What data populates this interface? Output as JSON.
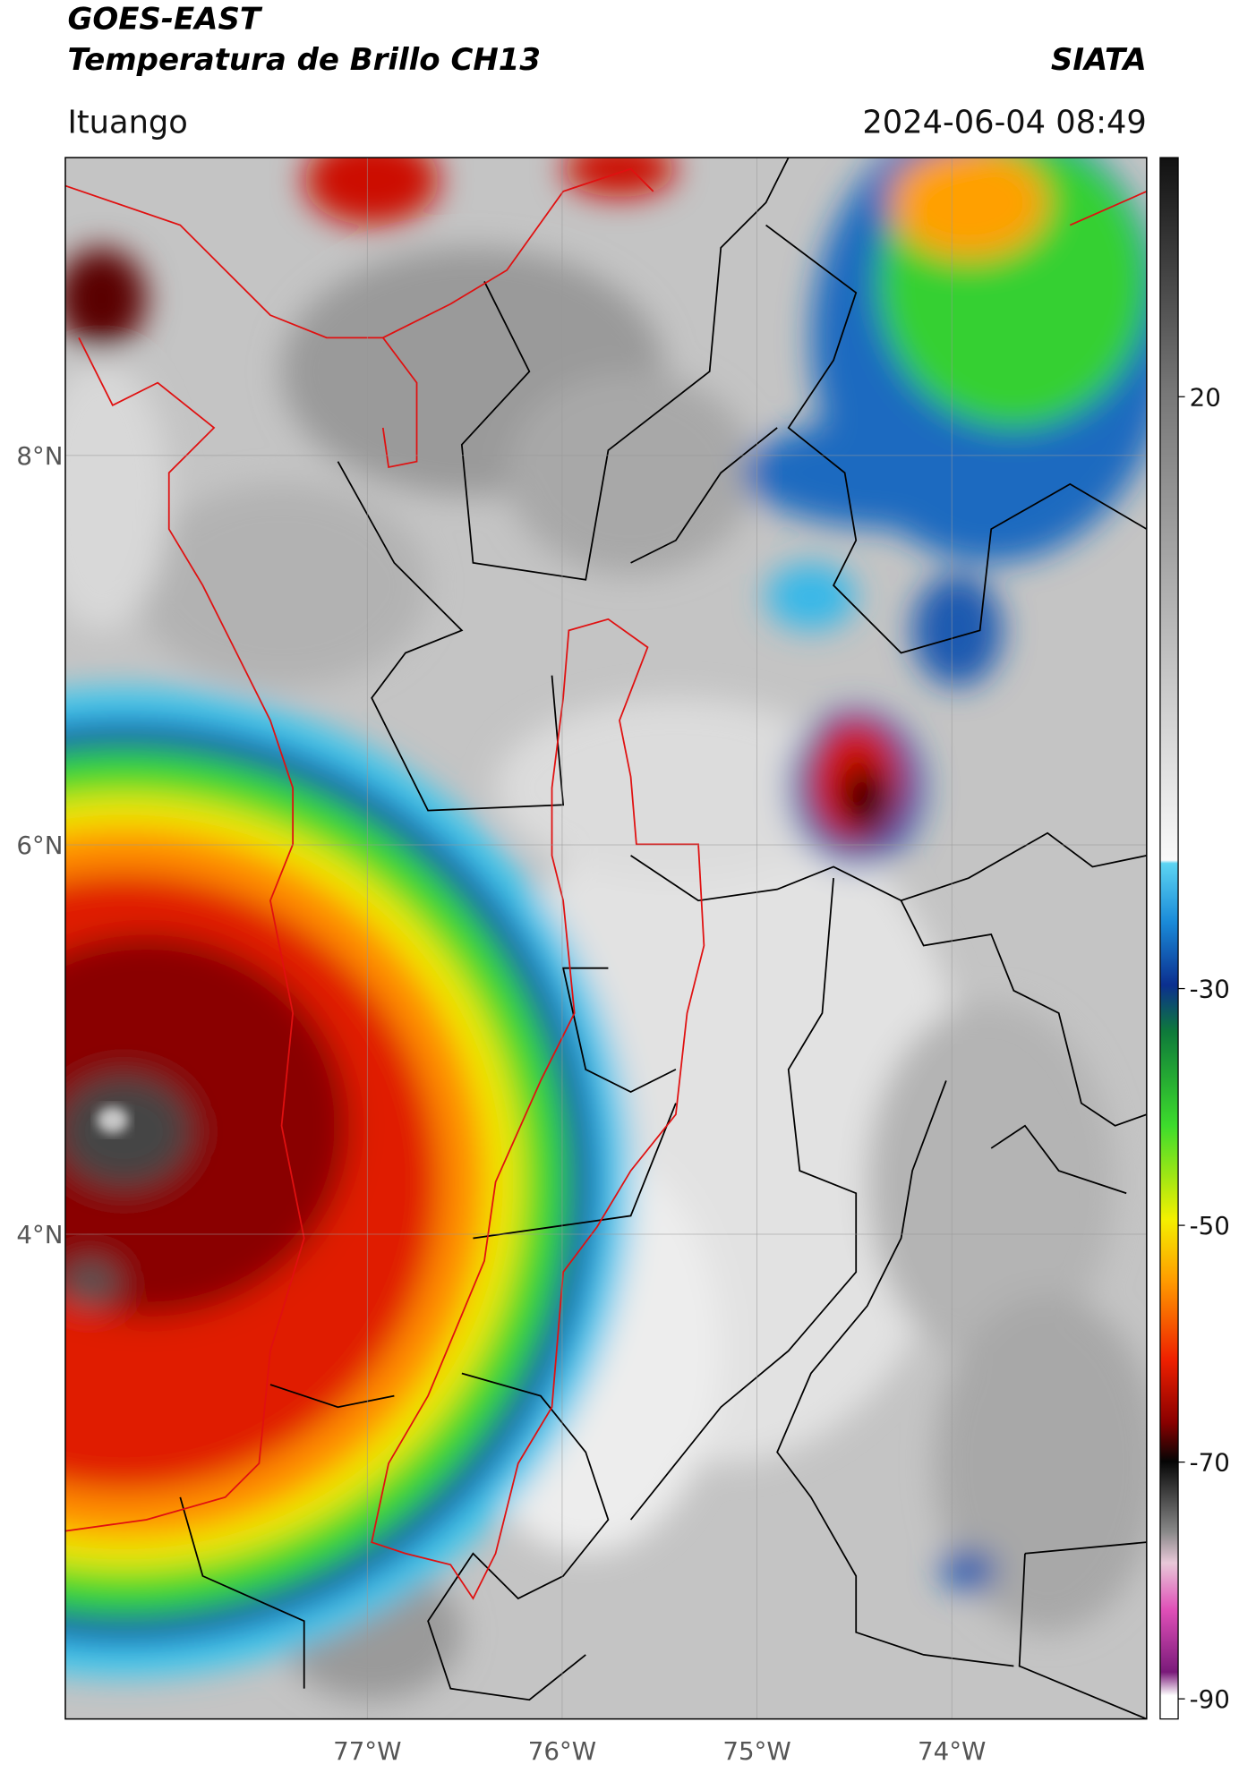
{
  "header": {
    "title": "GOES-EAST",
    "subtitle": "Temperatura de Brillo CH13",
    "source": "SIATA",
    "location": "Ituango",
    "timestamp": "2024-06-04 08:49"
  },
  "map": {
    "xlim": [
      -78.55,
      -73.0
    ],
    "ylim": [
      1.51,
      9.53
    ],
    "xticks": [
      {
        "value": -77,
        "label": "77°W"
      },
      {
        "value": -76,
        "label": "76°W"
      },
      {
        "value": -75,
        "label": "75°W"
      },
      {
        "value": -74,
        "label": "74°W"
      }
    ],
    "yticks": [
      {
        "value": 8,
        "label": "8°N"
      },
      {
        "value": 6,
        "label": "6°N"
      },
      {
        "value": 4,
        "label": "4°N"
      }
    ],
    "grid": true
  },
  "colorbar": {
    "lim": [
      -91.7,
      40.2
    ],
    "ticks": [
      20,
      -30,
      -50,
      -70,
      -90
    ]
  }
}
